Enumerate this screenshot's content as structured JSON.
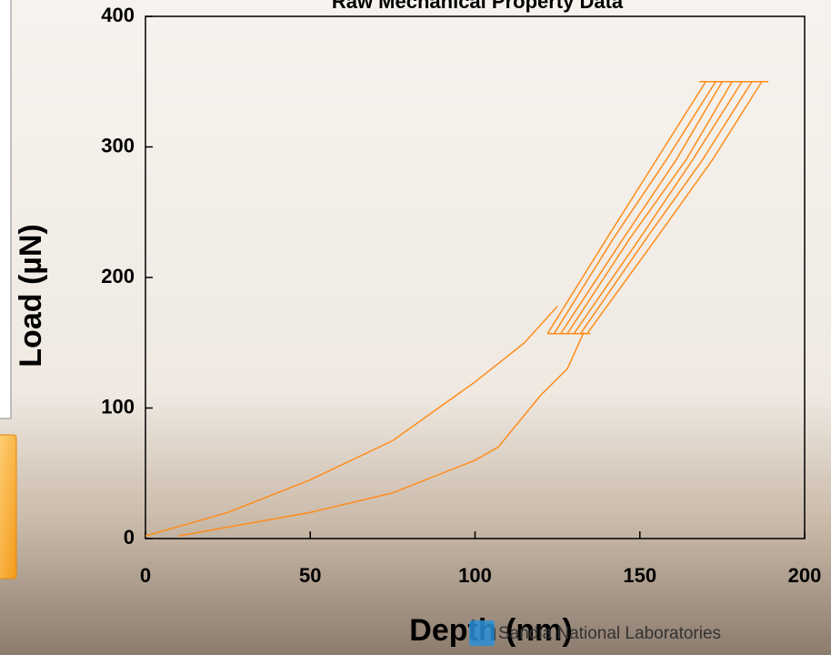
{
  "chart_data": {
    "type": "line",
    "title": "Raw Mechanical Property Data",
    "x_label": "Depth (nm)",
    "y_label": "Load (µN)",
    "xlim": [
      0,
      200
    ],
    "ylim": [
      0,
      400
    ],
    "xticks": [
      0,
      50,
      100,
      150,
      200
    ],
    "yticks": [
      0,
      100,
      200,
      300,
      400
    ],
    "series": [
      {
        "color": "#ff8c1a",
        "x": [
          0,
          25,
          50,
          75,
          100,
          115,
          125
        ],
        "values": [
          2,
          20,
          45,
          75,
          120,
          150,
          178
        ]
      },
      {
        "color": "#ff8c1a",
        "x": [
          10,
          50,
          75,
          100,
          107,
          120,
          128,
          133
        ],
        "values": [
          2,
          20,
          35,
          60,
          70,
          110,
          130,
          158
        ]
      },
      {
        "color": "#ff8c1a",
        "x": [
          122,
          140,
          155,
          170
        ],
        "values": [
          157,
          230,
          290,
          350
        ]
      },
      {
        "color": "#ff8c1a",
        "x": [
          124,
          142,
          158,
          173
        ],
        "values": [
          157,
          230,
          290,
          350
        ]
      },
      {
        "color": "#ff8c1a",
        "x": [
          126,
          145,
          161,
          175
        ],
        "values": [
          157,
          230,
          290,
          350
        ]
      },
      {
        "color": "#ff8c1a",
        "x": [
          128,
          147,
          164,
          178
        ],
        "values": [
          157,
          230,
          290,
          350
        ]
      },
      {
        "color": "#ff8c1a",
        "x": [
          130,
          150,
          166,
          181
        ],
        "values": [
          157,
          230,
          290,
          350
        ]
      },
      {
        "color": "#ff8c1a",
        "x": [
          132,
          152,
          169,
          184
        ],
        "values": [
          157,
          230,
          290,
          350
        ]
      },
      {
        "color": "#ff8c1a",
        "x": [
          134,
          155,
          172,
          187
        ],
        "values": [
          157,
          230,
          290,
          350
        ]
      },
      {
        "color": "#ff8c1a",
        "x": [
          122,
          135
        ],
        "values": [
          157,
          157
        ]
      },
      {
        "color": "#ff8c1a",
        "x": [
          168,
          189
        ],
        "values": [
          350,
          350
        ]
      }
    ]
  },
  "footer": "Sandia National Laboratories"
}
